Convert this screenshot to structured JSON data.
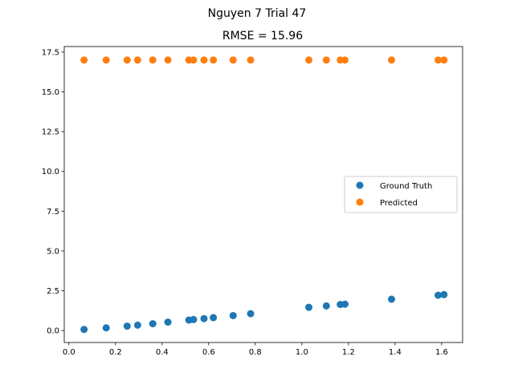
{
  "chart_data": {
    "type": "scatter",
    "suptitle": "Nguyen 7 Trial 47",
    "title": "RMSE = 15.96",
    "xlabel": "",
    "ylabel": "",
    "xlim": [
      -0.02,
      1.69
    ],
    "ylim": [
      -0.75,
      17.85
    ],
    "xticks": [
      "0.0",
      "0.2",
      "0.4",
      "0.6",
      "0.8",
      "1.0",
      "1.2",
      "1.4",
      "1.6"
    ],
    "xtick_values": [
      0.0,
      0.2,
      0.4,
      0.6,
      0.8,
      1.0,
      1.2,
      1.4,
      1.6
    ],
    "yticks": [
      "0.0",
      "2.5",
      "5.0",
      "7.5",
      "10.0",
      "12.5",
      "15.0",
      "17.5"
    ],
    "ytick_values": [
      0.0,
      2.5,
      5.0,
      7.5,
      10.0,
      12.5,
      15.0,
      17.5
    ],
    "grid": false,
    "legend_position": "center-right",
    "series": [
      {
        "name": "Ground Truth",
        "color": "#1f77b4",
        "x": [
          0.065,
          0.16,
          0.25,
          0.295,
          0.36,
          0.425,
          0.515,
          0.535,
          0.58,
          0.62,
          0.705,
          0.78,
          1.03,
          1.105,
          1.165,
          1.185,
          1.385,
          1.585,
          1.61
        ],
        "y": [
          0.07,
          0.17,
          0.28,
          0.34,
          0.43,
          0.53,
          0.66,
          0.69,
          0.75,
          0.81,
          0.94,
          1.06,
          1.46,
          1.55,
          1.64,
          1.66,
          1.97,
          2.22,
          2.26
        ]
      },
      {
        "name": "Predicted",
        "color": "#ff7f0e",
        "x": [
          0.065,
          0.16,
          0.25,
          0.295,
          0.36,
          0.425,
          0.515,
          0.535,
          0.58,
          0.62,
          0.705,
          0.78,
          1.03,
          1.105,
          1.165,
          1.185,
          1.385,
          1.585,
          1.61
        ],
        "y": [
          17.0,
          17.0,
          17.0,
          17.0,
          17.0,
          17.0,
          17.0,
          17.0,
          17.0,
          17.0,
          17.0,
          17.0,
          17.0,
          17.0,
          17.0,
          17.0,
          17.0,
          17.0,
          17.0
        ]
      }
    ]
  }
}
